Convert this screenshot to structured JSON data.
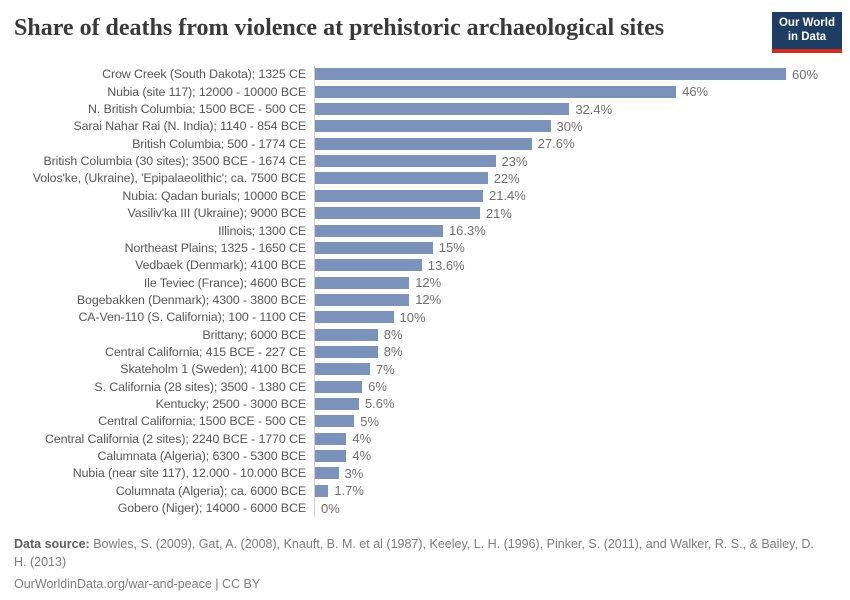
{
  "header": {
    "title": "Share of deaths from violence at prehistoric archaeological sites",
    "logo": {
      "line1": "Our World",
      "line2": "in Data",
      "bg_color": "#1d3d63",
      "accent_color": "#d42b21"
    }
  },
  "chart_data": {
    "type": "bar",
    "orientation": "horizontal",
    "title": "Share of deaths from violence at prehistoric archaeological sites",
    "xlabel": "",
    "ylabel": "",
    "xlim": [
      0,
      60
    ],
    "grid": false,
    "bar_color": "#7b92ba",
    "value_label_position": "end",
    "categories": [
      "Crow Creek (South Dakota); 1325 CE",
      "Nubia (site 117); 12000 - 10000 BCE",
      "N. British Columbia; 1500 BCE - 500 CE",
      "Sarai Nahar Rai (N. India); 1140 - 854 BCE",
      "British Columbia; 500 - 1774 CE",
      "British Columbia (30 sites); 3500 BCE - 1674 CE",
      "Volos'ke, (Ukraine), 'Epipalaeolithic'; ca. 7500 BCE",
      "Nubia: Qadan burials; 10000 BCE",
      "Vasiliv'ka III (Ukraine); 9000 BCE",
      "Illinois; 1300 CE",
      "Northeast Plains; 1325 - 1650 CE",
      "Vedbaek (Denmark); 4100 BCE",
      "Ile Teviec (France); 4600 BCE",
      "Bogebakken (Denmark); 4300 - 3800 BCE",
      "CA-Ven-110 (S. California); 100 - 1100 CE",
      "Brittany; 6000 BCE",
      "Central California; 415 BCE - 227 CE",
      "Skateholm 1 (Sweden); 4100 BCE",
      "S. California (28 sites); 3500 - 1380 CE",
      "Kentucky; 2500 - 3000 BCE",
      "Central California; 1500 BCE - 500 CE",
      "Central California (2 sites); 2240 BCE - 1770 CE",
      "Calumnata (Algeria); 6300 - 5300 BCE",
      "Nubia (near site 117), 12.000 - 10.000 BCE",
      "Columnata (Algeria); ca. 6000 BCE",
      "Gobero (Niger); 14000 - 6000 BCE"
    ],
    "values": [
      60,
      46,
      32.4,
      30,
      27.6,
      23,
      22,
      21.4,
      21,
      16.3,
      15,
      13.6,
      12,
      12,
      10,
      8,
      8,
      7,
      6,
      5.6,
      5,
      4,
      4,
      3,
      1.7,
      0
    ],
    "value_labels": [
      "60%",
      "46%",
      "32.4%",
      "30%",
      "27.6%",
      "23%",
      "22%",
      "21.4%",
      "21%",
      "16.3%",
      "15%",
      "13.6%",
      "12%",
      "12%",
      "10%",
      "8%",
      "8%",
      "7%",
      "6%",
      "5.6%",
      "5%",
      "4%",
      "4%",
      "3%",
      "1.7%",
      "0%"
    ]
  },
  "footer": {
    "source_label": "Data source:",
    "source_text": " Bowles, S. (2009), Gat, A. (2008), Knauft, B. M. et al (1987), Keeley, L. H. (1996), Pinker, S. (2011), and Walker, R. S., & Bailey, D. H. (2013)",
    "license_text": "OurWorldinData.org/war-and-peace | CC BY"
  }
}
